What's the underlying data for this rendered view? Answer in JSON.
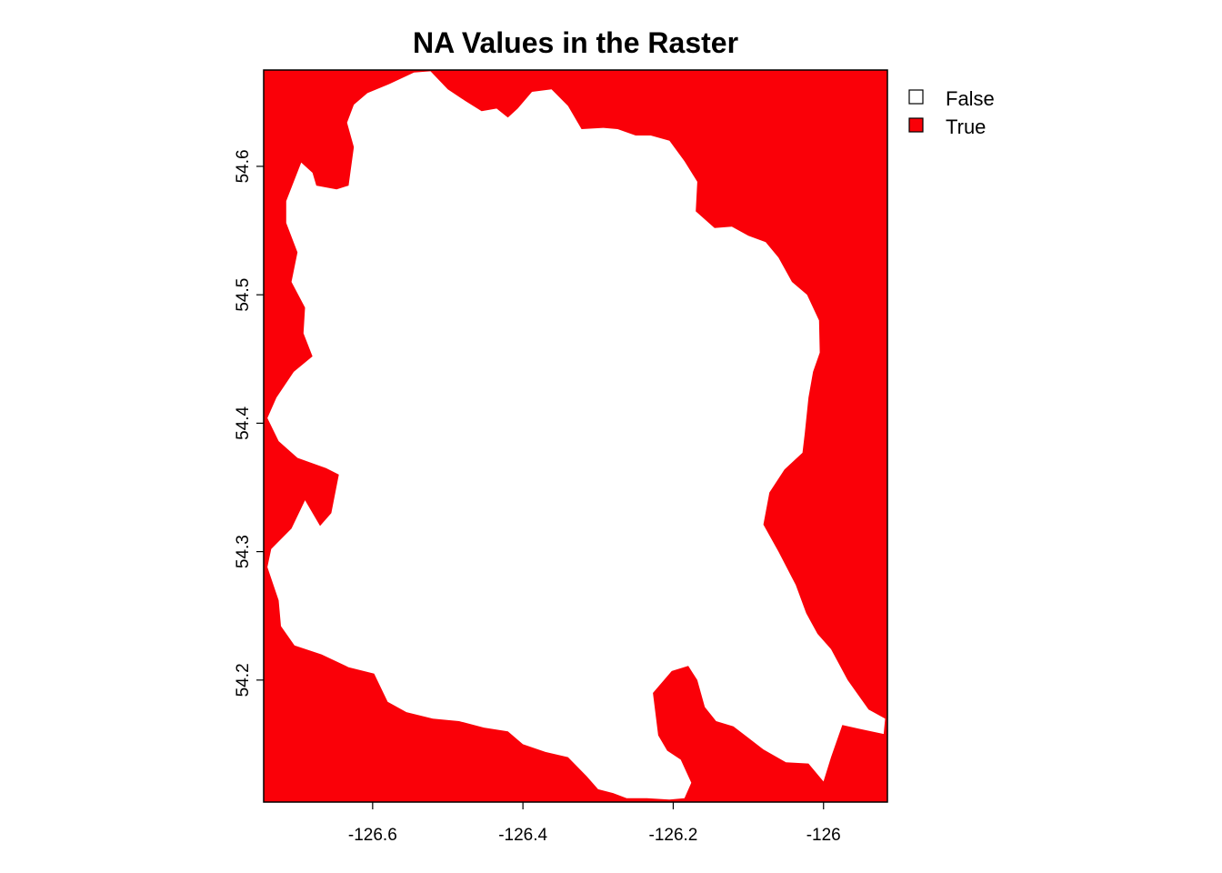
{
  "chart_data": {
    "type": "heatmap",
    "title": "NA Values in the Raster",
    "xlabel": "",
    "ylabel": "",
    "xlim": [
      -126.745,
      -125.915
    ],
    "ylim": [
      54.105,
      54.675
    ],
    "x_ticks": [
      {
        "value": -126.6,
        "label": "-126.6"
      },
      {
        "value": -126.4,
        "label": "-126.4"
      },
      {
        "value": -126.2,
        "label": "-126.2"
      },
      {
        "value": -126.0,
        "label": "-126"
      }
    ],
    "y_ticks": [
      {
        "value": 54.2,
        "label": "54.2"
      },
      {
        "value": 54.3,
        "label": "54.3"
      },
      {
        "value": 54.4,
        "label": "54.4"
      },
      {
        "value": 54.5,
        "label": "54.5"
      },
      {
        "value": 54.6,
        "label": "54.6"
      }
    ],
    "legend": {
      "position": "top-right",
      "entries": [
        {
          "label": "False",
          "color": "#ffffff"
        },
        {
          "label": "True",
          "color": "#fa0008"
        }
      ]
    },
    "background_value": "True",
    "background_color": "#fa0008",
    "region_value": "False",
    "region_color": "#ffffff",
    "region_boundary": [
      [
        -126.607,
        54.657
      ],
      [
        -126.578,
        54.664
      ],
      [
        -126.545,
        54.673
      ],
      [
        -126.523,
        54.674
      ],
      [
        -126.5,
        54.66
      ],
      [
        -126.477,
        54.651
      ],
      [
        -126.455,
        54.643
      ],
      [
        -126.435,
        54.645
      ],
      [
        -126.42,
        54.638
      ],
      [
        -126.407,
        54.645
      ],
      [
        -126.388,
        54.658
      ],
      [
        -126.362,
        54.66
      ],
      [
        -126.34,
        54.647
      ],
      [
        -126.322,
        54.629
      ],
      [
        -126.293,
        54.63
      ],
      [
        -126.274,
        54.629
      ],
      [
        -126.25,
        54.624
      ],
      [
        -126.23,
        54.624
      ],
      [
        -126.205,
        54.62
      ],
      [
        -126.185,
        54.604
      ],
      [
        -126.168,
        54.588
      ],
      [
        -126.17,
        54.565
      ],
      [
        -126.145,
        54.552
      ],
      [
        -126.122,
        54.553
      ],
      [
        -126.1,
        54.546
      ],
      [
        -126.077,
        54.541
      ],
      [
        -126.06,
        54.529
      ],
      [
        -126.042,
        54.51
      ],
      [
        -126.022,
        54.5
      ],
      [
        -126.006,
        54.48
      ],
      [
        -126.005,
        54.455
      ],
      [
        -126.014,
        54.44
      ],
      [
        -126.02,
        54.42
      ],
      [
        -126.025,
        54.392
      ],
      [
        -126.028,
        54.377
      ],
      [
        -126.052,
        54.364
      ],
      [
        -126.072,
        54.346
      ],
      [
        -126.08,
        54.321
      ],
      [
        -126.06,
        54.3
      ],
      [
        -126.037,
        54.274
      ],
      [
        -126.023,
        54.252
      ],
      [
        -126.008,
        54.236
      ],
      [
        -125.99,
        54.224
      ],
      [
        -125.968,
        54.2
      ],
      [
        -125.94,
        54.177
      ],
      [
        -125.918,
        54.17
      ],
      [
        -125.92,
        54.158
      ],
      [
        -125.952,
        54.162
      ],
      [
        -125.975,
        54.165
      ],
      [
        -125.99,
        54.14
      ],
      [
        -126.0,
        54.121
      ],
      [
        -126.02,
        54.135
      ],
      [
        -126.05,
        54.136
      ],
      [
        -126.08,
        54.146
      ],
      [
        -126.1,
        54.155
      ],
      [
        -126.12,
        54.164
      ],
      [
        -126.143,
        54.168
      ],
      [
        -126.158,
        54.179
      ],
      [
        -126.168,
        54.2
      ],
      [
        -126.18,
        54.211
      ],
      [
        -126.202,
        54.207
      ],
      [
        -126.227,
        54.19
      ],
      [
        -126.22,
        54.157
      ],
      [
        -126.208,
        54.145
      ],
      [
        -126.19,
        54.138
      ],
      [
        -126.176,
        54.12
      ],
      [
        -126.185,
        54.108
      ],
      [
        -126.205,
        54.107
      ],
      [
        -126.235,
        54.108
      ],
      [
        -126.262,
        54.108
      ],
      [
        -126.28,
        54.112
      ],
      [
        -126.3,
        54.115
      ],
      [
        -126.315,
        54.125
      ],
      [
        -126.34,
        54.14
      ],
      [
        -126.37,
        54.144
      ],
      [
        -126.4,
        54.15
      ],
      [
        -126.42,
        54.16
      ],
      [
        -126.452,
        54.163
      ],
      [
        -126.485,
        54.168
      ],
      [
        -126.52,
        54.17
      ],
      [
        -126.555,
        54.175
      ],
      [
        -126.58,
        54.183
      ],
      [
        -126.598,
        54.205
      ],
      [
        -126.632,
        54.21
      ],
      [
        -126.668,
        54.22
      ],
      [
        -126.704,
        54.227
      ],
      [
        -126.722,
        54.242
      ],
      [
        -126.725,
        54.262
      ],
      [
        -126.74,
        54.288
      ],
      [
        -126.735,
        54.302
      ],
      [
        -126.708,
        54.318
      ],
      [
        -126.69,
        54.34
      ],
      [
        -126.67,
        54.32
      ],
      [
        -126.655,
        54.33
      ],
      [
        -126.645,
        54.36
      ],
      [
        -126.662,
        54.365
      ],
      [
        -126.7,
        54.373
      ],
      [
        -126.725,
        54.386
      ],
      [
        -126.74,
        54.404
      ],
      [
        -126.728,
        54.42
      ],
      [
        -126.705,
        54.44
      ],
      [
        -126.68,
        54.452
      ],
      [
        -126.692,
        54.47
      ],
      [
        -126.69,
        54.49
      ],
      [
        -126.708,
        54.51
      ],
      [
        -126.7,
        54.533
      ],
      [
        -126.715,
        54.556
      ],
      [
        -126.715,
        54.573
      ],
      [
        -126.695,
        54.603
      ],
      [
        -126.68,
        54.595
      ],
      [
        -126.675,
        54.585
      ],
      [
        -126.648,
        54.582
      ],
      [
        -126.632,
        54.585
      ],
      [
        -126.625,
        54.615
      ],
      [
        -126.634,
        54.634
      ],
      [
        -126.625,
        54.648
      ]
    ]
  }
}
